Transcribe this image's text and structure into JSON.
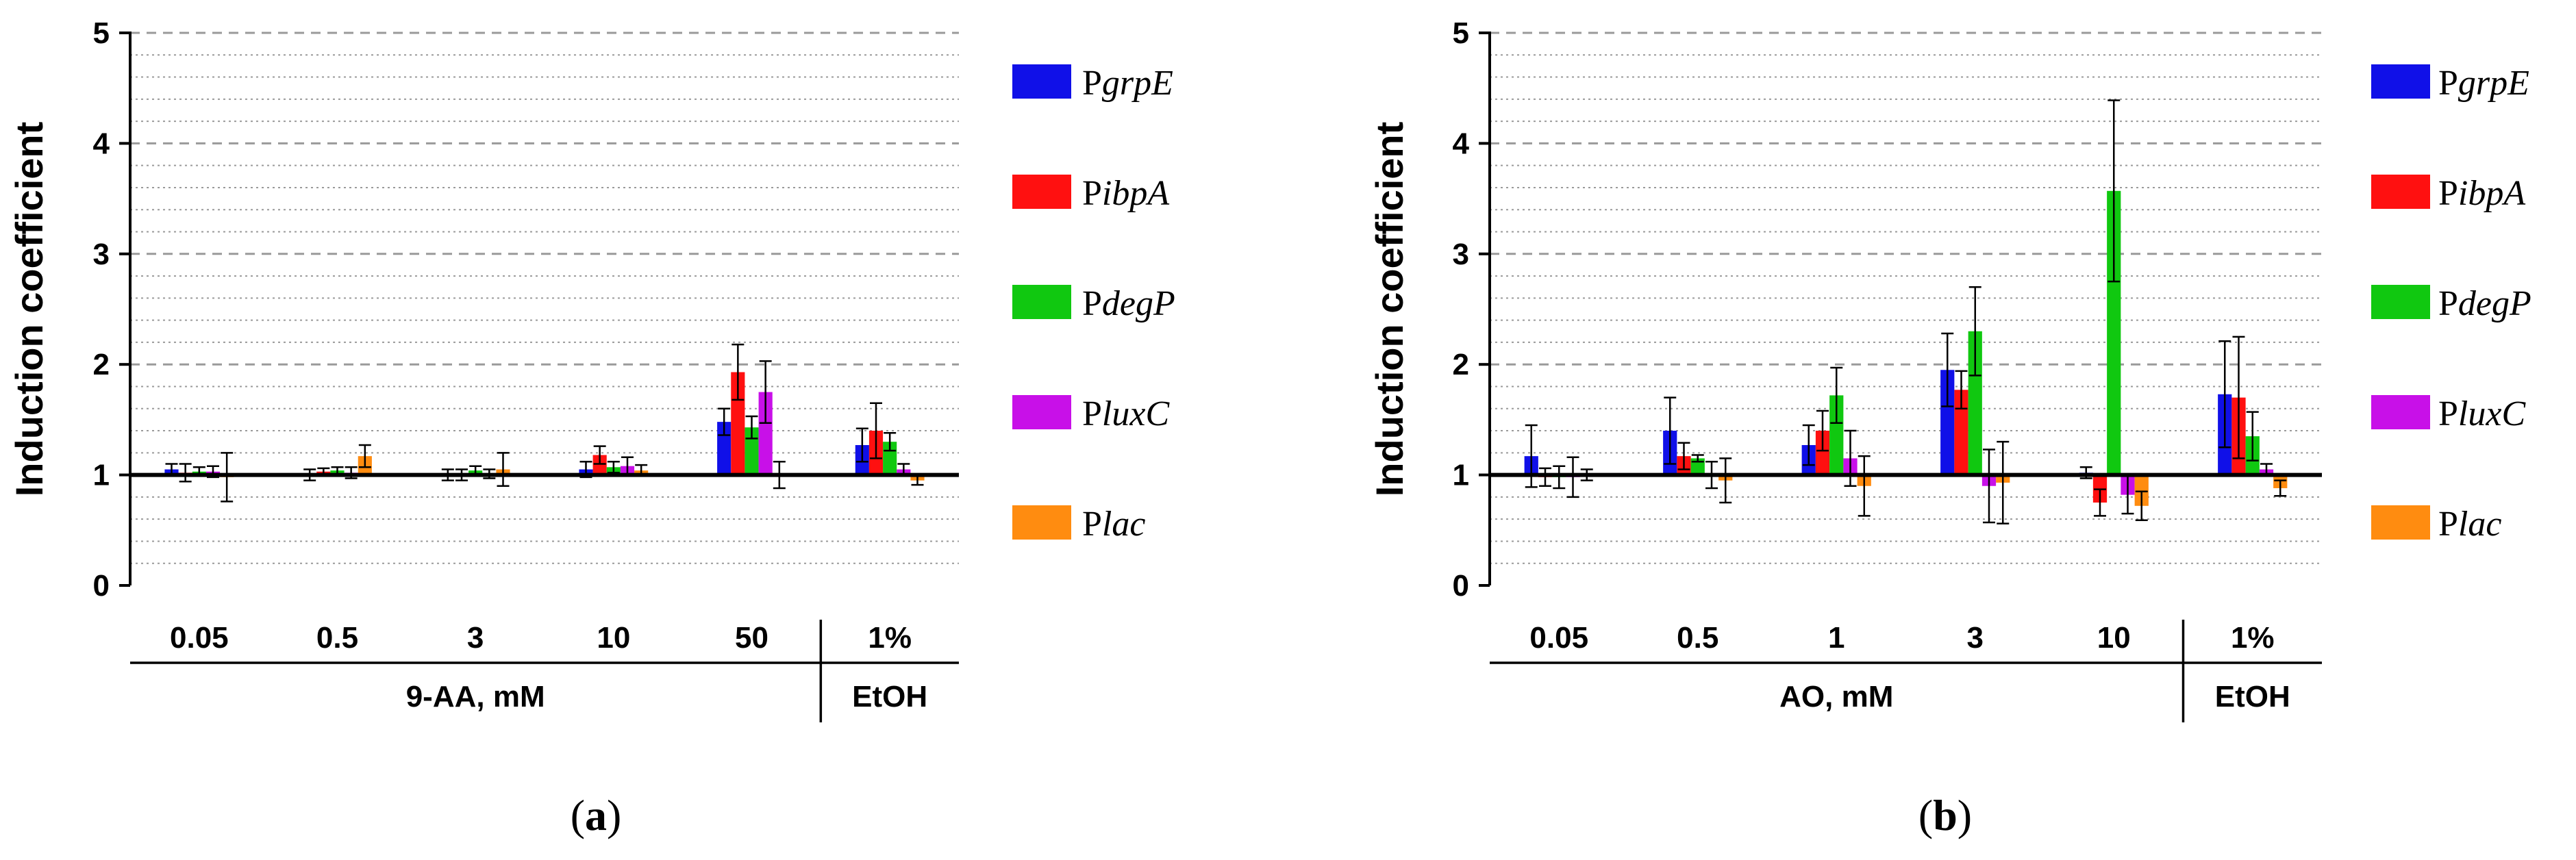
{
  "chart_data": [
    {
      "type": "bar",
      "panel": "(a)",
      "panel_label": "a",
      "ylabel": "Induction coefficient",
      "ylim": [
        0,
        5
      ],
      "yticks": [
        "0",
        "1",
        "2",
        "3",
        "4",
        "5"
      ],
      "baseline": 1,
      "categories": [
        "0.05",
        "0.5",
        "3",
        "10",
        "50",
        "1%"
      ],
      "group_labels": [
        {
          "label": "9-AA, mM",
          "categories": [
            "0.05",
            "0.5",
            "3",
            "10",
            "50"
          ]
        },
        {
          "label": "EtOH",
          "categories": [
            "1%"
          ]
        }
      ],
      "series": [
        {
          "name": "PgrpE",
          "prefix": "P",
          "gene": "grpE",
          "color": "#1010e8",
          "values": [
            1.05,
            1.0,
            1.0,
            1.05,
            1.48,
            1.27
          ],
          "errors": [
            0.05,
            0.05,
            0.05,
            0.07,
            0.12,
            0.15
          ]
        },
        {
          "name": "PibpA",
          "prefix": "P",
          "gene": "ibpA",
          "color": "#ff1010",
          "values": [
            1.02,
            1.03,
            1.0,
            1.18,
            1.93,
            1.4
          ],
          "errors": [
            0.08,
            0.03,
            0.05,
            0.08,
            0.25,
            0.25
          ]
        },
        {
          "name": "PdegP",
          "prefix": "P",
          "gene": "degP",
          "color": "#10c810",
          "values": [
            1.03,
            1.04,
            1.04,
            1.07,
            1.43,
            1.3
          ],
          "errors": [
            0.04,
            0.03,
            0.04,
            0.05,
            0.1,
            0.08
          ]
        },
        {
          "name": "PluxC",
          "prefix": "P",
          "gene": "luxC",
          "color": "#c810e8",
          "values": [
            1.03,
            1.02,
            1.01,
            1.08,
            1.75,
            1.05
          ],
          "errors": [
            0.05,
            0.05,
            0.04,
            0.08,
            0.28,
            0.05
          ]
        },
        {
          "name": "Plac",
          "prefix": "P",
          "gene": "lac",
          "color": "#ff8c10",
          "values": [
            0.98,
            1.17,
            1.05,
            1.04,
            1.0,
            0.95
          ],
          "errors": [
            0.22,
            0.1,
            0.15,
            0.05,
            0.12,
            0.04
          ]
        }
      ]
    },
    {
      "type": "bar",
      "panel": "(b)",
      "panel_label": "b",
      "ylabel": "Induction coefficient",
      "ylim": [
        0,
        5
      ],
      "yticks": [
        "0",
        "1",
        "2",
        "3",
        "4",
        "5"
      ],
      "baseline": 1,
      "categories": [
        "0.05",
        "0.5",
        "1",
        "3",
        "10",
        "1%"
      ],
      "group_labels": [
        {
          "label": "AO, mM",
          "categories": [
            "0.05",
            "0.5",
            "1",
            "3",
            "10"
          ]
        },
        {
          "label": "EtOH",
          "categories": [
            "1%"
          ]
        }
      ],
      "series": [
        {
          "name": "PgrpE",
          "prefix": "P",
          "gene": "grpE",
          "color": "#1010e8",
          "values": [
            1.17,
            1.4,
            1.27,
            1.95,
            1.02,
            1.73
          ],
          "errors": [
            0.28,
            0.3,
            0.18,
            0.33,
            0.05,
            0.48
          ]
        },
        {
          "name": "PibpA",
          "prefix": "P",
          "gene": "ibpA",
          "color": "#ff1010",
          "values": [
            0.98,
            1.17,
            1.4,
            1.77,
            0.75,
            1.7
          ],
          "errors": [
            0.08,
            0.12,
            0.18,
            0.17,
            0.12,
            0.55
          ]
        },
        {
          "name": "PdegP",
          "prefix": "P",
          "gene": "degP",
          "color": "#10c810",
          "values": [
            0.98,
            1.15,
            1.72,
            2.3,
            3.57,
            1.35
          ],
          "errors": [
            0.1,
            0.03,
            0.25,
            0.4,
            0.82,
            0.22
          ]
        },
        {
          "name": "PluxC",
          "prefix": "P",
          "gene": "luxC",
          "color": "#c810e8",
          "values": [
            0.98,
            1.0,
            1.15,
            0.9,
            0.82,
            1.05
          ],
          "errors": [
            0.18,
            0.12,
            0.25,
            0.33,
            0.17,
            0.05
          ]
        },
        {
          "name": "Plac",
          "prefix": "P",
          "gene": "lac",
          "color": "#ff8c10",
          "values": [
            1.0,
            0.95,
            0.9,
            0.93,
            0.72,
            0.88
          ],
          "errors": [
            0.05,
            0.2,
            0.27,
            0.37,
            0.13,
            0.07
          ]
        }
      ]
    }
  ]
}
